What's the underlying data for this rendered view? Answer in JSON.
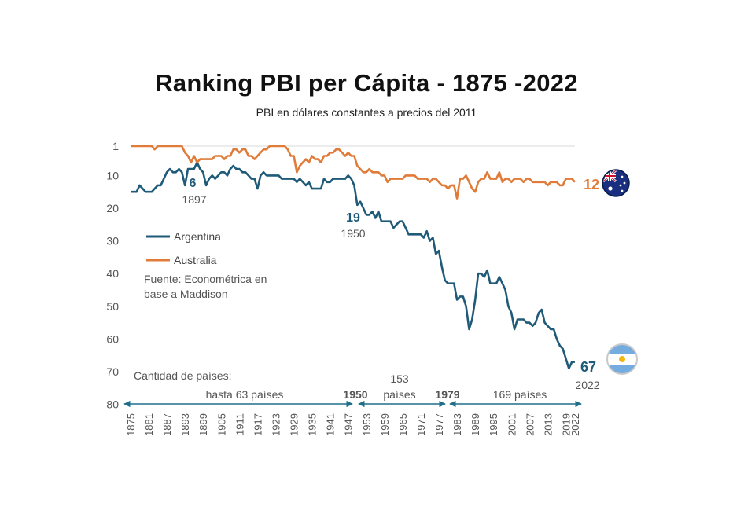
{
  "chart_data": {
    "type": "line",
    "title": "Ranking PBI per Cápita - 1875 -2022",
    "subtitle": "PBI en dólares constantes a precios del 2011",
    "y_inverted": true,
    "ylim": [
      1,
      80
    ],
    "yticks": [
      "1",
      "10",
      "20",
      "30",
      "40",
      "50",
      "60",
      "70",
      "80"
    ],
    "xticks": [
      "1875",
      "1881",
      "1887",
      "1893",
      "1899",
      "1905",
      "1911",
      "1917",
      "1923",
      "1929",
      "1935",
      "1941",
      "1947",
      "1953",
      "1959",
      "1965",
      "1971",
      "1977",
      "1983",
      "1989",
      "1995",
      "2001",
      "2007",
      "2013",
      "2019",
      "2022"
    ],
    "xlim": [
      1875,
      2022
    ],
    "grid": false,
    "legend_position": "center-left",
    "series": [
      {
        "name": "Argentina",
        "color": "#1f5a78",
        "points": [
          [
            1875,
            15
          ],
          [
            1876,
            15
          ],
          [
            1877,
            15
          ],
          [
            1878,
            13
          ],
          [
            1879,
            14
          ],
          [
            1880,
            15
          ],
          [
            1881,
            15
          ],
          [
            1882,
            15
          ],
          [
            1883,
            14
          ],
          [
            1884,
            13
          ],
          [
            1885,
            13
          ],
          [
            1886,
            11
          ],
          [
            1887,
            9
          ],
          [
            1888,
            8
          ],
          [
            1889,
            9
          ],
          [
            1890,
            9
          ],
          [
            1891,
            8
          ],
          [
            1892,
            9
          ],
          [
            1893,
            13
          ],
          [
            1894,
            8
          ],
          [
            1895,
            8
          ],
          [
            1896,
            8
          ],
          [
            1897,
            6
          ],
          [
            1898,
            8
          ],
          [
            1899,
            9
          ],
          [
            1900,
            13
          ],
          [
            1901,
            11
          ],
          [
            1902,
            10
          ],
          [
            1903,
            11
          ],
          [
            1904,
            10
          ],
          [
            1905,
            9
          ],
          [
            1906,
            9
          ],
          [
            1907,
            10
          ],
          [
            1908,
            8
          ],
          [
            1909,
            7
          ],
          [
            1910,
            8
          ],
          [
            1911,
            8
          ],
          [
            1912,
            9
          ],
          [
            1913,
            9
          ],
          [
            1914,
            10
          ],
          [
            1915,
            11
          ],
          [
            1916,
            11
          ],
          [
            1917,
            14
          ],
          [
            1918,
            10
          ],
          [
            1919,
            9
          ],
          [
            1920,
            10
          ],
          [
            1921,
            10
          ],
          [
            1922,
            10
          ],
          [
            1923,
            10
          ],
          [
            1924,
            10
          ],
          [
            1925,
            11
          ],
          [
            1926,
            11
          ],
          [
            1927,
            11
          ],
          [
            1928,
            11
          ],
          [
            1929,
            11
          ],
          [
            1930,
            12
          ],
          [
            1931,
            11
          ],
          [
            1932,
            12
          ],
          [
            1933,
            13
          ],
          [
            1934,
            12
          ],
          [
            1935,
            14
          ],
          [
            1936,
            14
          ],
          [
            1937,
            14
          ],
          [
            1938,
            14
          ],
          [
            1939,
            11
          ],
          [
            1940,
            12
          ],
          [
            1941,
            12
          ],
          [
            1942,
            11
          ],
          [
            1943,
            11
          ],
          [
            1944,
            11
          ],
          [
            1945,
            11
          ],
          [
            1946,
            11
          ],
          [
            1947,
            10
          ],
          [
            1948,
            11
          ],
          [
            1949,
            13
          ],
          [
            1950,
            19
          ],
          [
            1951,
            18
          ],
          [
            1952,
            20
          ],
          [
            1953,
            22
          ],
          [
            1954,
            22
          ],
          [
            1955,
            21
          ],
          [
            1956,
            23
          ],
          [
            1957,
            21
          ],
          [
            1958,
            24
          ],
          [
            1959,
            24
          ],
          [
            1960,
            24
          ],
          [
            1961,
            24
          ],
          [
            1962,
            26
          ],
          [
            1963,
            25
          ],
          [
            1964,
            24
          ],
          [
            1965,
            24
          ],
          [
            1966,
            26
          ],
          [
            1967,
            28
          ],
          [
            1968,
            28
          ],
          [
            1969,
            28
          ],
          [
            1970,
            28
          ],
          [
            1971,
            28
          ],
          [
            1972,
            29
          ],
          [
            1973,
            27
          ],
          [
            1974,
            30
          ],
          [
            1975,
            29
          ],
          [
            1976,
            34
          ],
          [
            1977,
            33
          ],
          [
            1978,
            38
          ],
          [
            1979,
            42
          ],
          [
            1980,
            43
          ],
          [
            1981,
            43
          ],
          [
            1982,
            43
          ],
          [
            1983,
            48
          ],
          [
            1984,
            47
          ],
          [
            1985,
            47
          ],
          [
            1986,
            50
          ],
          [
            1987,
            57
          ],
          [
            1988,
            54
          ],
          [
            1989,
            48
          ],
          [
            1990,
            40
          ],
          [
            1991,
            40
          ],
          [
            1992,
            41
          ],
          [
            1993,
            39
          ],
          [
            1994,
            43
          ],
          [
            1995,
            43
          ],
          [
            1996,
            43
          ],
          [
            1997,
            41
          ],
          [
            1998,
            43
          ],
          [
            1999,
            45
          ],
          [
            2000,
            50
          ],
          [
            2001,
            52
          ],
          [
            2002,
            57
          ],
          [
            2003,
            54
          ],
          [
            2004,
            54
          ],
          [
            2005,
            54
          ],
          [
            2006,
            55
          ],
          [
            2007,
            55
          ],
          [
            2008,
            56
          ],
          [
            2009,
            55
          ],
          [
            2010,
            52
          ],
          [
            2011,
            51
          ],
          [
            2012,
            55
          ],
          [
            2013,
            56
          ],
          [
            2014,
            57
          ],
          [
            2015,
            57
          ],
          [
            2016,
            60
          ],
          [
            2017,
            62
          ],
          [
            2018,
            63
          ],
          [
            2019,
            66
          ],
          [
            2020,
            69
          ],
          [
            2021,
            67
          ],
          [
            2022,
            67
          ]
        ]
      },
      {
        "name": "Australia",
        "color": "#e07b39",
        "points": [
          [
            1875,
            1
          ],
          [
            1876,
            1
          ],
          [
            1877,
            1
          ],
          [
            1878,
            1
          ],
          [
            1879,
            1
          ],
          [
            1880,
            1
          ],
          [
            1881,
            1
          ],
          [
            1882,
            1
          ],
          [
            1883,
            2
          ],
          [
            1884,
            1
          ],
          [
            1885,
            1
          ],
          [
            1886,
            1
          ],
          [
            1887,
            1
          ],
          [
            1888,
            1
          ],
          [
            1889,
            1
          ],
          [
            1890,
            1
          ],
          [
            1891,
            1
          ],
          [
            1892,
            1
          ],
          [
            1893,
            3
          ],
          [
            1894,
            4
          ],
          [
            1895,
            6
          ],
          [
            1896,
            4
          ],
          [
            1897,
            6
          ],
          [
            1898,
            5
          ],
          [
            1899,
            5
          ],
          [
            1900,
            5
          ],
          [
            1901,
            5
          ],
          [
            1902,
            5
          ],
          [
            1903,
            4
          ],
          [
            1904,
            4
          ],
          [
            1905,
            4
          ],
          [
            1906,
            5
          ],
          [
            1907,
            4
          ],
          [
            1908,
            4
          ],
          [
            1909,
            2
          ],
          [
            1910,
            2
          ],
          [
            1911,
            3
          ],
          [
            1912,
            2
          ],
          [
            1913,
            2
          ],
          [
            1914,
            4
          ],
          [
            1915,
            4
          ],
          [
            1916,
            5
          ],
          [
            1917,
            4
          ],
          [
            1918,
            3
          ],
          [
            1919,
            2
          ],
          [
            1920,
            2
          ],
          [
            1921,
            1
          ],
          [
            1922,
            1
          ],
          [
            1923,
            1
          ],
          [
            1924,
            1
          ],
          [
            1925,
            1
          ],
          [
            1926,
            1
          ],
          [
            1927,
            2
          ],
          [
            1928,
            4
          ],
          [
            1929,
            4
          ],
          [
            1930,
            9
          ],
          [
            1931,
            7
          ],
          [
            1932,
            6
          ],
          [
            1933,
            5
          ],
          [
            1934,
            6
          ],
          [
            1935,
            4
          ],
          [
            1936,
            5
          ],
          [
            1937,
            5
          ],
          [
            1938,
            6
          ],
          [
            1939,
            4
          ],
          [
            1940,
            4
          ],
          [
            1941,
            3
          ],
          [
            1942,
            3
          ],
          [
            1943,
            2
          ],
          [
            1944,
            2
          ],
          [
            1945,
            3
          ],
          [
            1946,
            4
          ],
          [
            1947,
            3
          ],
          [
            1948,
            4
          ],
          [
            1949,
            4
          ],
          [
            1950,
            7
          ],
          [
            1951,
            8
          ],
          [
            1952,
            9
          ],
          [
            1953,
            9
          ],
          [
            1954,
            8
          ],
          [
            1955,
            9
          ],
          [
            1956,
            9
          ],
          [
            1957,
            9
          ],
          [
            1958,
            10
          ],
          [
            1959,
            10
          ],
          [
            1960,
            12
          ],
          [
            1961,
            11
          ],
          [
            1962,
            11
          ],
          [
            1963,
            11
          ],
          [
            1964,
            11
          ],
          [
            1965,
            11
          ],
          [
            1966,
            10
          ],
          [
            1967,
            10
          ],
          [
            1968,
            10
          ],
          [
            1969,
            10
          ],
          [
            1970,
            11
          ],
          [
            1971,
            11
          ],
          [
            1972,
            11
          ],
          [
            1973,
            11
          ],
          [
            1974,
            12
          ],
          [
            1975,
            11
          ],
          [
            1976,
            11
          ],
          [
            1977,
            12
          ],
          [
            1978,
            13
          ],
          [
            1979,
            13
          ],
          [
            1980,
            14
          ],
          [
            1981,
            13
          ],
          [
            1982,
            13
          ],
          [
            1983,
            17
          ],
          [
            1984,
            11
          ],
          [
            1985,
            11
          ],
          [
            1986,
            10
          ],
          [
            1987,
            12
          ],
          [
            1988,
            14
          ],
          [
            1989,
            15
          ],
          [
            1990,
            12
          ],
          [
            1991,
            11
          ],
          [
            1992,
            11
          ],
          [
            1993,
            9
          ],
          [
            1994,
            11
          ],
          [
            1995,
            11
          ],
          [
            1996,
            11
          ],
          [
            1997,
            9
          ],
          [
            1998,
            12
          ],
          [
            1999,
            11
          ],
          [
            2000,
            11
          ],
          [
            2001,
            12
          ],
          [
            2002,
            11
          ],
          [
            2003,
            11
          ],
          [
            2004,
            11
          ],
          [
            2005,
            12
          ],
          [
            2006,
            11
          ],
          [
            2007,
            11
          ],
          [
            2008,
            12
          ],
          [
            2009,
            12
          ],
          [
            2010,
            12
          ],
          [
            2011,
            12
          ],
          [
            2012,
            12
          ],
          [
            2013,
            13
          ],
          [
            2014,
            12
          ],
          [
            2015,
            12
          ],
          [
            2016,
            12
          ],
          [
            2017,
            13
          ],
          [
            2018,
            13
          ],
          [
            2019,
            11
          ],
          [
            2020,
            11
          ],
          [
            2021,
            11
          ],
          [
            2022,
            12
          ]
        ]
      }
    ],
    "annotations": [
      {
        "series": "Argentina",
        "year": 1897,
        "rank": "6",
        "label": "1897"
      },
      {
        "series": "Argentina",
        "year": 1950,
        "rank": "19",
        "label": "1950"
      },
      {
        "series": "Argentina",
        "year": 2022,
        "rank": "67",
        "label": "2022"
      },
      {
        "series": "Australia",
        "year": 2022,
        "rank": "12"
      }
    ],
    "source_note": [
      "Fuente: Econométrica en",
      "base a Maddison"
    ],
    "countries_section_title": "Cantidad de países:",
    "periods": [
      {
        "from": 1875,
        "to": 1950,
        "label": [
          "hasta 63 países"
        ]
      },
      {
        "from": 1950,
        "to": 1979,
        "label": [
          "153",
          "países"
        ]
      },
      {
        "from": 1979,
        "to": 2022,
        "label": [
          "169 países"
        ]
      }
    ],
    "period_markers": [
      "1950",
      "1979"
    ],
    "flags": [
      "australia-flag",
      "argentina-flag"
    ]
  }
}
